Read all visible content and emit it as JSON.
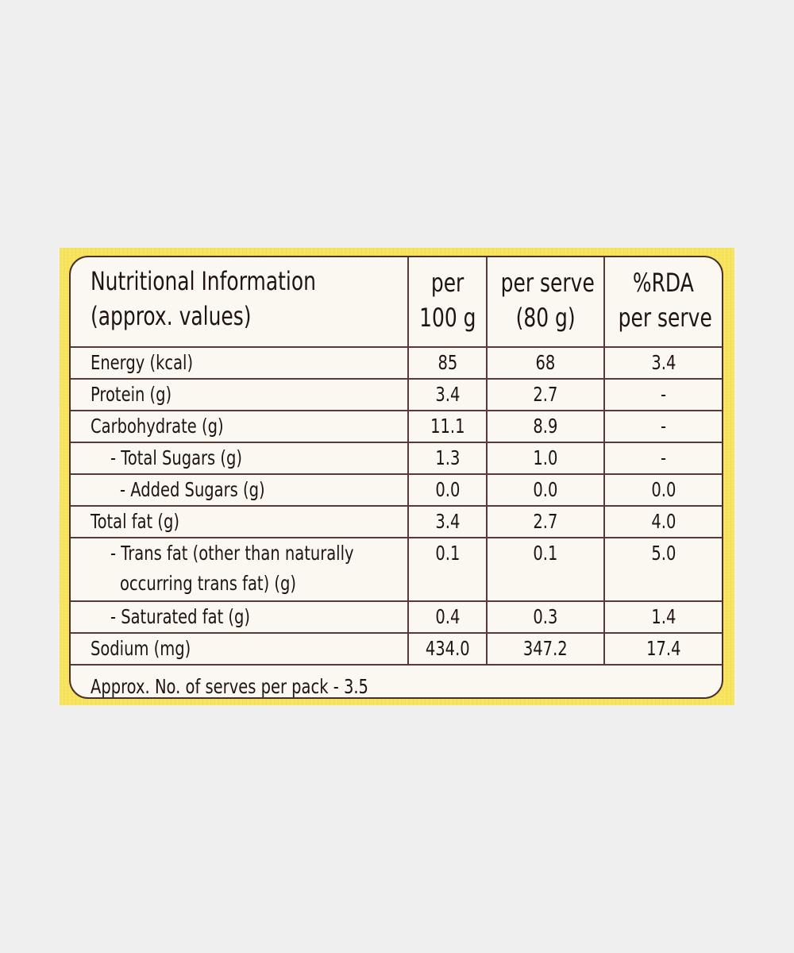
{
  "nutrition_label": {
    "header": {
      "title_line1": "Nutritional Information",
      "title_line2": "(approx. values)",
      "col_per100_line1": "per",
      "col_per100_line2": "100 g",
      "col_serve_line1": "per serve",
      "col_serve_line2": "(80 g)",
      "col_rda_line1": "%RDA",
      "col_rda_line2": "per serve"
    },
    "rows": [
      {
        "label": "Energy (kcal)",
        "per100": "85",
        "serve": "68",
        "rda": "3.4"
      },
      {
        "label": "Protein (g)",
        "per100": "3.4",
        "serve": "2.7",
        "rda": "-"
      },
      {
        "label": "Carbohydrate (g)",
        "per100": "11.1",
        "serve": "8.9",
        "rda": "-"
      },
      {
        "label": "- Total Sugars (g)",
        "per100": "1.3",
        "serve": "1.0",
        "rda": "-"
      },
      {
        "label": "- Added Sugars (g)",
        "per100": "0.0",
        "serve": "0.0",
        "rda": "0.0"
      },
      {
        "label": "Total fat (g)",
        "per100": "3.4",
        "serve": "2.7",
        "rda": "4.0"
      },
      {
        "label_line1": "- Trans fat (other than naturally",
        "label_line2": "occurring trans fat) (g)",
        "per100": "0.1",
        "serve": "0.1",
        "rda": "5.0"
      },
      {
        "label": "- Saturated fat (g)",
        "per100": "0.4",
        "serve": "0.3",
        "rda": "1.4"
      },
      {
        "label": "Sodium (mg)",
        "per100": "434.0",
        "serve": "347.2",
        "rda": "17.4"
      }
    ],
    "footer": "Approx. No. of serves per pack - 3.5"
  },
  "colors": {
    "background": "#efefef",
    "pack_yellow": "#f7e35c",
    "label_bg": "#fbf8f1",
    "border_brown": "#4a2f2c",
    "text": "#1f1413"
  }
}
